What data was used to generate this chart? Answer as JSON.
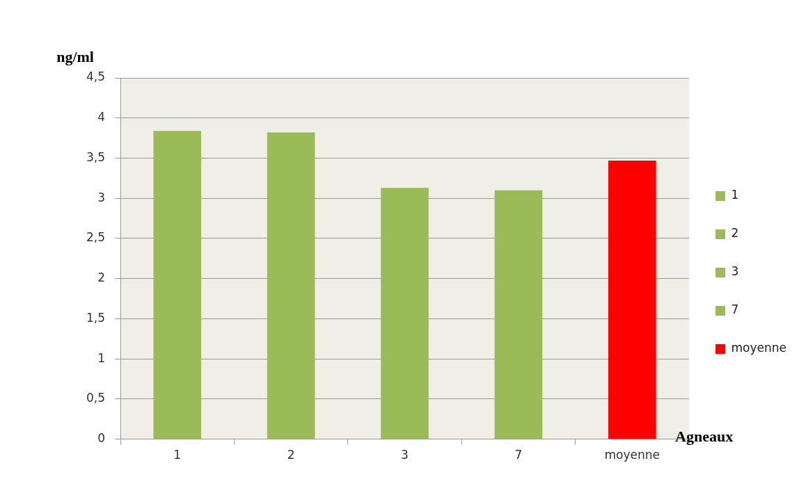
{
  "chart_data": {
    "type": "bar",
    "ylabel": "ng/ml",
    "xlabel": "Agneaux",
    "categories": [
      "1",
      "2",
      "3",
      "7",
      "moyenne"
    ],
    "series": [
      {
        "name": "1",
        "color": "#9bbb59",
        "values": [
          3.84,
          null,
          null,
          null,
          null
        ]
      },
      {
        "name": "2",
        "color": "#9bbb59",
        "values": [
          null,
          3.82,
          null,
          null,
          null
        ]
      },
      {
        "name": "3",
        "color": "#9bbb59",
        "values": [
          null,
          null,
          3.13,
          null,
          null
        ]
      },
      {
        "name": "7",
        "color": "#9bbb59",
        "values": [
          null,
          null,
          null,
          3.1,
          null
        ]
      },
      {
        "name": "moyenne",
        "color": "#ff0000",
        "values": [
          null,
          null,
          null,
          null,
          3.47
        ]
      }
    ],
    "ylim": [
      0,
      4.5
    ],
    "yticks": [
      0,
      {
        "value": 0.5,
        "label": "0,5"
      },
      1,
      {
        "value": 1.5,
        "label": "1,5"
      },
      2,
      {
        "value": 2.5,
        "label": "2,5"
      },
      3,
      {
        "value": 3.5,
        "label": "3,5"
      },
      4,
      {
        "value": 4.5,
        "label": "4,5"
      }
    ],
    "grid": "y",
    "legend": "right"
  }
}
